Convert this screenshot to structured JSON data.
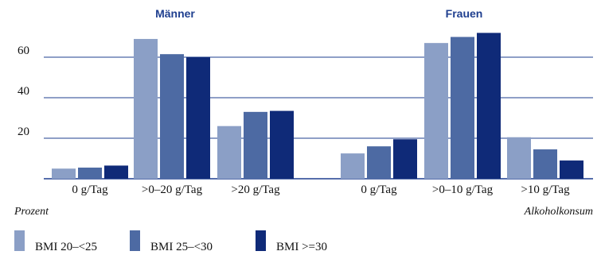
{
  "chart_data": [
    {
      "type": "bar",
      "title": "Männer",
      "categories": [
        "0 g/Tag",
        ">0–20 g/Tag",
        ">20 g/Tag"
      ],
      "series": [
        {
          "name": "BMI 20–<25",
          "values": [
            5,
            69,
            26
          ]
        },
        {
          "name": "BMI 25–<30",
          "values": [
            5.5,
            61.5,
            33
          ]
        },
        {
          "name": "BMI >=30",
          "values": [
            6.5,
            60,
            33.5
          ]
        }
      ]
    },
    {
      "type": "bar",
      "title": "Frauen",
      "categories": [
        "0 g/Tag",
        ">0–10 g/Tag",
        ">10 g/Tag"
      ],
      "series": [
        {
          "name": "BMI 20–<25",
          "values": [
            12.5,
            67,
            20.5
          ]
        },
        {
          "name": "BMI 25–<30",
          "values": [
            16,
            70,
            14.5
          ]
        },
        {
          "name": "BMI >=30",
          "values": [
            19.5,
            72,
            9
          ]
        }
      ]
    }
  ],
  "axes": {
    "ylabel": "Prozent",
    "xlabel": "Alkoholkonsum",
    "yticks": [
      20,
      40,
      60
    ],
    "ylim": [
      0,
      75
    ],
    "grid": true
  },
  "legend": {
    "placement": "bottom-left",
    "items": [
      {
        "label": "BMI 20–<25",
        "color": "#8b9fc6"
      },
      {
        "label": "BMI 25–<30",
        "color": "#4d6aa3"
      },
      {
        "label": "BMI >=30",
        "color": "#0f2a78"
      }
    ]
  },
  "colors": {
    "series": [
      "#8b9fc6",
      "#4d6aa3",
      "#0f2a78"
    ],
    "title": "#1f3f8f",
    "grid": "#1f3f8f",
    "axis": "#1f3f8f"
  }
}
